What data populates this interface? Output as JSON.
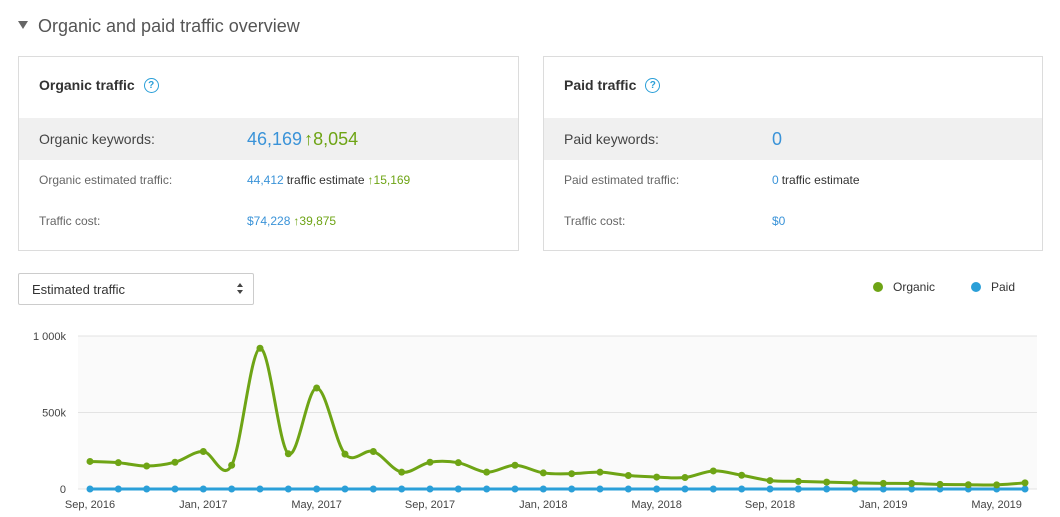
{
  "section": {
    "title": "Organic and paid traffic overview"
  },
  "organic": {
    "title": "Organic traffic",
    "keywords_label": "Organic keywords:",
    "keywords_value": "46,169",
    "keywords_delta": "8,054",
    "est_label": "Organic estimated traffic:",
    "est_value": "44,412",
    "est_suffix": "traffic estimate",
    "est_delta": "15,169",
    "cost_label": "Traffic cost:",
    "cost_value": "$74,228",
    "cost_delta": "39,875"
  },
  "paid": {
    "title": "Paid traffic",
    "keywords_label": "Paid keywords:",
    "keywords_value": "0",
    "est_label": "Paid estimated traffic:",
    "est_value": "0",
    "est_suffix": "traffic estimate",
    "cost_label": "Traffic cost:",
    "cost_value": "$0"
  },
  "metric_select": {
    "selected": "Estimated traffic"
  },
  "legend": {
    "organic": "Organic",
    "paid": "Paid"
  },
  "colors": {
    "organic": "#6ea415",
    "paid": "#2a9fd8",
    "accent_blue": "#3a93d8"
  },
  "chart_data": {
    "type": "line",
    "x_tick_labels": [
      "Sep, 2016",
      "Jan, 2017",
      "May, 2017",
      "Sep, 2017",
      "Jan, 2018",
      "May, 2018",
      "Sep, 2018",
      "Jan, 2019",
      "May, 2019"
    ],
    "y_tick_labels": [
      "0",
      "500k",
      "1 000k"
    ],
    "ylim": [
      0,
      1000000
    ],
    "grid": true,
    "legend_position": "top-right",
    "series": [
      {
        "name": "Organic",
        "color": "#6ea415",
        "values": [
          180000,
          172000,
          150000,
          175000,
          245000,
          155000,
          920000,
          230000,
          660000,
          228000,
          245000,
          110000,
          175000,
          172000,
          110000,
          155000,
          105000,
          100000,
          110000,
          88000,
          78000,
          75000,
          118000,
          90000,
          55000,
          50000,
          45000,
          40000,
          37000,
          36000,
          30000,
          28000,
          27000,
          40000
        ]
      },
      {
        "name": "Paid",
        "color": "#2a9fd8",
        "values": [
          0,
          0,
          0,
          0,
          0,
          0,
          0,
          0,
          0,
          0,
          0,
          0,
          0,
          0,
          0,
          0,
          0,
          0,
          0,
          0,
          0,
          0,
          0,
          0,
          0,
          0,
          0,
          0,
          0,
          0,
          0,
          0,
          0,
          0
        ]
      }
    ]
  }
}
